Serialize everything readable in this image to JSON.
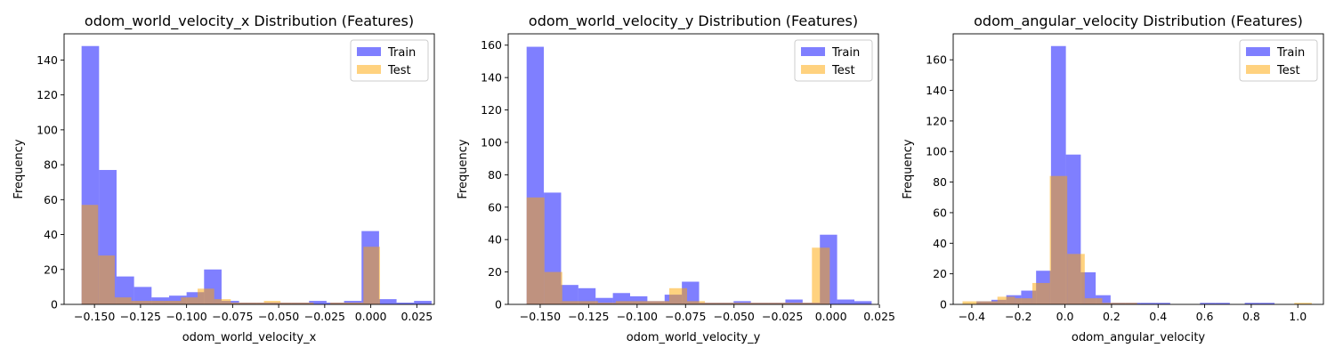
{
  "chart_data": [
    {
      "type": "histogram",
      "title": "odom_world_velocity_x Distribution (Features)",
      "xlabel": "odom_world_velocity_x",
      "ylabel": "Frequency",
      "xlim": [
        -0.1665,
        0.0345
      ],
      "ylim": [
        0,
        155
      ],
      "xticks": [
        -0.15,
        -0.125,
        -0.1,
        -0.075,
        -0.05,
        -0.025,
        0.0,
        0.025
      ],
      "xtick_labels": [
        "−0.150",
        "−0.125",
        "−0.100",
        "−0.075",
        "−0.050",
        "−0.025",
        "0.000",
        "0.025"
      ],
      "yticks": [
        0,
        20,
        40,
        60,
        80,
        100,
        120,
        140
      ],
      "legend_position": "upper-right",
      "series": [
        {
          "name": "Train",
          "color": "#0000ff",
          "alpha": 0.5,
          "bins": [
            [
              -0.157,
              -0.1475,
              148
            ],
            [
              -0.1475,
              -0.138,
              77
            ],
            [
              -0.138,
              -0.1285,
              16
            ],
            [
              -0.1285,
              -0.119,
              10
            ],
            [
              -0.119,
              -0.1095,
              4
            ],
            [
              -0.1095,
              -0.1,
              5
            ],
            [
              -0.1,
              -0.0905,
              7
            ],
            [
              -0.0905,
              -0.081,
              20
            ],
            [
              -0.081,
              -0.0715,
              2
            ],
            [
              -0.0715,
              -0.062,
              1
            ],
            [
              -0.062,
              -0.0525,
              1
            ],
            [
              -0.0525,
              -0.043,
              1
            ],
            [
              -0.043,
              -0.0335,
              1
            ],
            [
              -0.0335,
              -0.024,
              2
            ],
            [
              -0.024,
              -0.0145,
              1
            ],
            [
              -0.0145,
              -0.005,
              2
            ],
            [
              -0.005,
              0.0045,
              42
            ],
            [
              0.0045,
              0.014,
              3
            ],
            [
              0.014,
              0.0235,
              1
            ],
            [
              0.0235,
              0.033,
              2
            ]
          ]
        },
        {
          "name": "Test",
          "color": "#ffa500",
          "alpha": 0.5,
          "bins": [
            [
              -0.157,
              -0.148,
              57
            ],
            [
              -0.148,
              -0.139,
              28
            ],
            [
              -0.139,
              -0.13,
              4
            ],
            [
              -0.13,
              -0.121,
              2
            ],
            [
              -0.121,
              -0.112,
              2
            ],
            [
              -0.112,
              -0.103,
              2
            ],
            [
              -0.103,
              -0.094,
              4
            ],
            [
              -0.094,
              -0.085,
              9
            ],
            [
              -0.085,
              -0.076,
              3
            ],
            [
              -0.076,
              -0.067,
              1
            ],
            [
              -0.067,
              -0.058,
              1
            ],
            [
              -0.058,
              -0.049,
              2
            ],
            [
              -0.049,
              -0.04,
              1
            ],
            [
              -0.04,
              -0.031,
              1
            ],
            [
              -0.031,
              -0.022,
              0
            ],
            [
              -0.022,
              -0.013,
              1
            ],
            [
              -0.013,
              -0.004,
              1
            ],
            [
              -0.004,
              0.005,
              33
            ],
            [
              0.005,
              0.014,
              0
            ],
            [
              0.014,
              0.023,
              0
            ]
          ]
        }
      ]
    },
    {
      "type": "histogram",
      "title": "odom_world_velocity_y Distribution (Features)",
      "xlabel": "odom_world_velocity_y",
      "ylabel": "Frequency",
      "xlim": [
        -0.1665,
        0.0245
      ],
      "ylim": [
        0,
        167
      ],
      "xticks": [
        -0.15,
        -0.125,
        -0.1,
        -0.075,
        -0.05,
        -0.025,
        0.0,
        0.025
      ],
      "xtick_labels": [
        "−0.150",
        "−0.125",
        "−0.100",
        "−0.075",
        "−0.050",
        "−0.025",
        "0.000",
        "0.025"
      ],
      "yticks": [
        0,
        20,
        40,
        60,
        80,
        100,
        120,
        140,
        160
      ],
      "legend_position": "upper-right",
      "series": [
        {
          "name": "Train",
          "color": "#0000ff",
          "alpha": 0.5,
          "bins": [
            [
              -0.157,
              -0.1481,
              159
            ],
            [
              -0.1481,
              -0.1392,
              69
            ],
            [
              -0.1392,
              -0.1303,
              12
            ],
            [
              -0.1303,
              -0.1214,
              10
            ],
            [
              -0.1214,
              -0.1125,
              4
            ],
            [
              -0.1125,
              -0.1036,
              7
            ],
            [
              -0.1036,
              -0.0947,
              5
            ],
            [
              -0.0947,
              -0.0858,
              2
            ],
            [
              -0.0858,
              -0.0769,
              6
            ],
            [
              -0.0769,
              -0.068,
              14
            ],
            [
              -0.068,
              -0.0591,
              1
            ],
            [
              -0.0591,
              -0.0502,
              1
            ],
            [
              -0.0502,
              -0.0413,
              2
            ],
            [
              -0.0413,
              -0.0324,
              1
            ],
            [
              -0.0324,
              -0.0235,
              1
            ],
            [
              -0.0235,
              -0.0146,
              3
            ],
            [
              -0.0146,
              -0.0057,
              1
            ],
            [
              -0.0057,
              0.0032,
              43
            ],
            [
              0.0032,
              0.0121,
              3
            ],
            [
              0.0121,
              0.021,
              2
            ]
          ]
        },
        {
          "name": "Test",
          "color": "#ffa500",
          "alpha": 0.5,
          "bins": [
            [
              -0.157,
              -0.1478,
              66
            ],
            [
              -0.1478,
              -0.1386,
              20
            ],
            [
              -0.1386,
              -0.1294,
              2
            ],
            [
              -0.1294,
              -0.1202,
              2
            ],
            [
              -0.1202,
              -0.111,
              1
            ],
            [
              -0.111,
              -0.1018,
              2
            ],
            [
              -0.1018,
              -0.0926,
              2
            ],
            [
              -0.0926,
              -0.0834,
              2
            ],
            [
              -0.0834,
              -0.0742,
              10
            ],
            [
              -0.0742,
              -0.065,
              2
            ],
            [
              -0.065,
              -0.0558,
              1
            ],
            [
              -0.0558,
              -0.0466,
              1
            ],
            [
              -0.0466,
              -0.0374,
              1
            ],
            [
              -0.0374,
              -0.0282,
              1
            ],
            [
              -0.0282,
              -0.019,
              1
            ],
            [
              -0.019,
              -0.0098,
              1
            ],
            [
              -0.0098,
              -0.0006,
              35
            ],
            [
              -0.0006,
              0.0086,
              0
            ],
            [
              0.0086,
              0.0178,
              0
            ],
            [
              0.0178,
              0.027,
              0
            ]
          ]
        }
      ]
    },
    {
      "type": "histogram",
      "title": "odom_angular_velocity Distribution (Features)",
      "xlabel": "odom_angular_velocity",
      "ylabel": "Frequency",
      "xlim": [
        -0.48,
        1.11
      ],
      "ylim": [
        0,
        177
      ],
      "xticks": [
        -0.4,
        -0.2,
        0.0,
        0.2,
        0.4,
        0.6,
        0.8,
        1.0
      ],
      "xtick_labels": [
        "−0.4",
        "−0.2",
        "0.0",
        "0.2",
        "0.4",
        "0.6",
        "0.8",
        "1.0"
      ],
      "yticks": [
        0,
        20,
        40,
        60,
        80,
        100,
        120,
        140,
        160
      ],
      "legend_position": "upper-right",
      "series": [
        {
          "name": "Train",
          "color": "#0000ff",
          "alpha": 0.5,
          "bins": [
            [
              -0.38,
              -0.316,
              2
            ],
            [
              -0.316,
              -0.252,
              3
            ],
            [
              -0.252,
              -0.188,
              6
            ],
            [
              -0.188,
              -0.124,
              9
            ],
            [
              -0.124,
              -0.06,
              22
            ],
            [
              -0.06,
              0.004,
              169
            ],
            [
              0.004,
              0.068,
              98
            ],
            [
              0.068,
              0.132,
              21
            ],
            [
              0.132,
              0.196,
              6
            ],
            [
              0.196,
              0.26,
              1
            ],
            [
              0.26,
              0.324,
              1
            ],
            [
              0.324,
              0.388,
              1
            ],
            [
              0.388,
              0.452,
              1
            ],
            [
              0.452,
              0.516,
              0
            ],
            [
              0.516,
              0.58,
              0
            ],
            [
              0.58,
              0.644,
              1
            ],
            [
              0.644,
              0.708,
              1
            ],
            [
              0.708,
              0.772,
              0
            ],
            [
              0.772,
              0.836,
              1
            ],
            [
              0.836,
              0.9,
              1
            ]
          ]
        },
        {
          "name": "Test",
          "color": "#ffa500",
          "alpha": 0.5,
          "bins": [
            [
              -0.44,
              -0.365,
              2
            ],
            [
              -0.365,
              -0.29,
              2
            ],
            [
              -0.29,
              -0.215,
              5
            ],
            [
              -0.215,
              -0.14,
              4
            ],
            [
              -0.14,
              -0.065,
              14
            ],
            [
              -0.065,
              0.01,
              84
            ],
            [
              0.01,
              0.085,
              33
            ],
            [
              0.085,
              0.16,
              4
            ],
            [
              0.16,
              0.235,
              1
            ],
            [
              0.235,
              0.31,
              1
            ],
            [
              0.31,
              0.385,
              0
            ],
            [
              0.385,
              0.46,
              0
            ],
            [
              0.46,
              0.535,
              0
            ],
            [
              0.535,
              0.61,
              0
            ],
            [
              0.61,
              0.685,
              0
            ],
            [
              0.685,
              0.76,
              0
            ],
            [
              0.76,
              0.835,
              0
            ],
            [
              0.835,
              0.91,
              0
            ],
            [
              0.91,
              0.985,
              0
            ],
            [
              0.985,
              1.06,
              1
            ]
          ]
        }
      ]
    }
  ]
}
